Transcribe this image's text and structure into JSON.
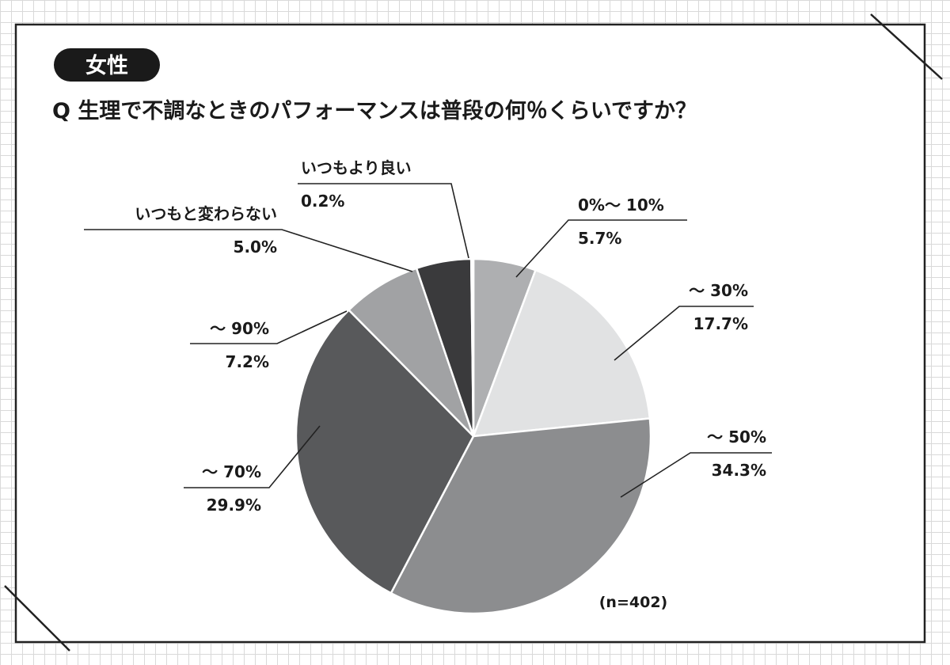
{
  "badge": "女性",
  "question": "Q 生理で不調なときのパフォーマンスは普段の何％くらいですか？",
  "note": "(n=402)",
  "chart_data": {
    "type": "pie",
    "title": "Q 生理で不調なときのパフォーマンスは普段の何％くらいですか？",
    "slices": [
      {
        "label": "0%～ 10%",
        "value": 5.7,
        "display": "5.7%",
        "color": "#aeafb1"
      },
      {
        "label": "～ 30%",
        "value": 17.7,
        "display": "17.7%",
        "color": "#e1e2e3"
      },
      {
        "label": "～ 50%",
        "value": 34.3,
        "display": "34.3%",
        "color": "#8c8d8f"
      },
      {
        "label": "～ 70%",
        "value": 29.9,
        "display": "29.9%",
        "color": "#58595b"
      },
      {
        "label": "～ 90%",
        "value": 7.2,
        "display": "7.2%",
        "color": "#a1a2a4"
      },
      {
        "label": "いつもと変わらない",
        "value": 5.0,
        "display": "5.0%",
        "color": "#3a3a3c"
      },
      {
        "label": "いつもより良い",
        "value": 0.2,
        "display": "0.2%",
        "color": "#ffffff"
      }
    ]
  }
}
